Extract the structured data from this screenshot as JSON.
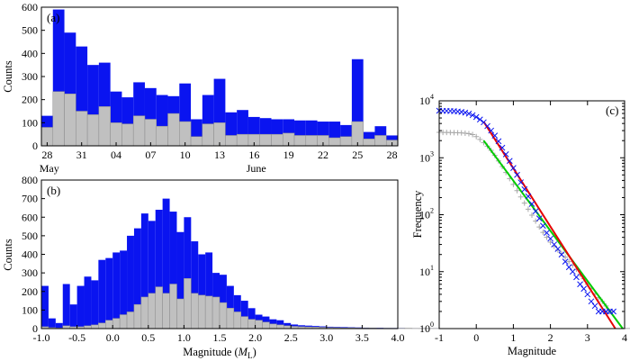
{
  "colors": {
    "total": "#0a14f0",
    "subset": "#c0c0c0",
    "edge": "#8c8c8c",
    "fit_total": "#e60000",
    "fit_subset": "#00cc00",
    "cum_total": "#0a14f0",
    "cum_subset": "#a8a8a8"
  },
  "chart_data": [
    {
      "type": "bar",
      "panel": "(a)",
      "ylabel": "Counts",
      "ylim": [
        0,
        600
      ],
      "yticks": [
        0,
        100,
        200,
        300,
        400,
        500,
        600
      ],
      "day_range": [
        28,
        59
      ],
      "xtick_labels": [
        "28",
        "31",
        "04",
        "07",
        "10",
        "13",
        "16",
        "19",
        "22",
        "25",
        "28"
      ],
      "month_labels": [
        "May",
        "June"
      ],
      "series": [
        {
          "name": "",
          "values": [
            130,
            590,
            490,
            430,
            350,
            360,
            235,
            210,
            275,
            250,
            220,
            215,
            270,
            115,
            220,
            290,
            145,
            155,
            125,
            120,
            115,
            115,
            110,
            110,
            105,
            105,
            90,
            375,
            60,
            85,
            45
          ]
        },
        {
          "name": "",
          "values": [
            80,
            235,
            225,
            150,
            135,
            170,
            100,
            95,
            130,
            115,
            85,
            140,
            105,
            40,
            95,
            100,
            45,
            50,
            50,
            50,
            50,
            55,
            45,
            45,
            45,
            35,
            40,
            105,
            30,
            45,
            25
          ]
        }
      ]
    },
    {
      "type": "bar",
      "panel": "(b)",
      "xlabel": "Magnitude (",
      "xlabel_sym": "M",
      "xlabel_sub": "L",
      "xlabel_end": ")",
      "ylabel": "Counts",
      "xlim": [
        -1.0,
        4.0
      ],
      "ylim": [
        0,
        800
      ],
      "xtick_labels": [
        "-1.0",
        "-0.5",
        "0.0",
        "0.5",
        "1.0",
        "1.5",
        "2.0",
        "2.5",
        "3.0",
        "3.5",
        "4.0"
      ],
      "yticks": [
        0,
        100,
        200,
        300,
        400,
        500,
        600,
        700,
        800
      ],
      "bin_width": 0.1,
      "bin_start": -1.0,
      "series": [
        {
          "name": "",
          "values": [
            230,
            55,
            30,
            240,
            130,
            230,
            280,
            260,
            370,
            380,
            410,
            420,
            500,
            540,
            620,
            580,
            640,
            700,
            630,
            520,
            600,
            470,
            400,
            410,
            300,
            290,
            230,
            180,
            150,
            110,
            75,
            65,
            50,
            45,
            30,
            22,
            18,
            16,
            14,
            12,
            10,
            9,
            8,
            7,
            6,
            5,
            4,
            4,
            3,
            3,
            3,
            2,
            2,
            2,
            2,
            2,
            1,
            1,
            1,
            1,
            1,
            1,
            1,
            1,
            1,
            1,
            1,
            1,
            1,
            1,
            1,
            1,
            1,
            1,
            1,
            1,
            1,
            1,
            1,
            1,
            1,
            1,
            1,
            1,
            1,
            1,
            1,
            1,
            1,
            1,
            1,
            1,
            1,
            1,
            1,
            1,
            1,
            1,
            1,
            1
          ]
        },
        {
          "name": "",
          "values": [
            10,
            5,
            3,
            15,
            10,
            10,
            15,
            20,
            30,
            45,
            55,
            75,
            90,
            130,
            170,
            190,
            225,
            190,
            240,
            160,
            270,
            190,
            180,
            175,
            170,
            140,
            110,
            90,
            65,
            50,
            45,
            35,
            25,
            20,
            15,
            12,
            10,
            9,
            8,
            7,
            6,
            5,
            4,
            4,
            3,
            3,
            3,
            2,
            2,
            2,
            2,
            2,
            1,
            1,
            1,
            1,
            1,
            1,
            1,
            1,
            1,
            1,
            1,
            1,
            1,
            1,
            1,
            1,
            1,
            1,
            1,
            1,
            1,
            1,
            1,
            1,
            1,
            1,
            1,
            1,
            1,
            1,
            1,
            1,
            1,
            1,
            1,
            1,
            1,
            1,
            1,
            1,
            1,
            1,
            1,
            1,
            1,
            1,
            1,
            1
          ]
        }
      ]
    },
    {
      "type": "scatter",
      "panel": "(c)",
      "xlabel": "Magnitude",
      "ylabel": "Frequency",
      "xlim": [
        -1,
        4
      ],
      "ylim": [
        1,
        10000
      ],
      "yscale": "log",
      "xtick_labels": [
        "-1",
        "0",
        "1",
        "2",
        "3",
        "4"
      ],
      "ytick_labels": [
        {
          "base": "10",
          "exp": "0"
        },
        {
          "base": "10",
          "exp": "1"
        },
        {
          "base": "10",
          "exp": "2"
        },
        {
          "base": "10",
          "exp": "3"
        },
        {
          "base": "10",
          "exp": "4"
        }
      ],
      "series": [
        {
          "name": "",
          "marker": "x",
          "points": [
            [
              -1.0,
              6700
            ],
            [
              -0.9,
              6650
            ],
            [
              -0.8,
              6650
            ],
            [
              -0.7,
              6620
            ],
            [
              -0.6,
              6580
            ],
            [
              -0.5,
              6500
            ],
            [
              -0.4,
              6380
            ],
            [
              -0.3,
              6200
            ],
            [
              -0.2,
              5950
            ],
            [
              -0.1,
              5600
            ],
            [
              0.0,
              5200
            ],
            [
              0.1,
              4700
            ],
            [
              0.2,
              4200
            ],
            [
              0.3,
              3600
            ],
            [
              0.4,
              3000
            ],
            [
              0.5,
              2450
            ],
            [
              0.6,
              1950
            ],
            [
              0.7,
              1500
            ],
            [
              0.8,
              1150
            ],
            [
              0.9,
              880
            ],
            [
              1.0,
              660
            ],
            [
              1.1,
              500
            ],
            [
              1.2,
              370
            ],
            [
              1.3,
              280
            ],
            [
              1.4,
              210
            ],
            [
              1.5,
              155
            ],
            [
              1.6,
              115
            ],
            [
              1.7,
              86
            ],
            [
              1.8,
              64
            ],
            [
              1.9,
              48
            ],
            [
              2.0,
              38
            ],
            [
              2.1,
              30
            ],
            [
              2.2,
              25
            ],
            [
              2.3,
              20
            ],
            [
              2.4,
              15
            ],
            [
              2.5,
              12
            ],
            [
              2.6,
              10
            ],
            [
              2.7,
              8
            ],
            [
              2.8,
              6
            ],
            [
              2.9,
              5
            ],
            [
              3.0,
              4
            ],
            [
              3.1,
              3
            ],
            [
              3.2,
              2.5
            ],
            [
              3.3,
              2
            ],
            [
              3.4,
              2
            ],
            [
              3.5,
              2
            ],
            [
              3.6,
              2
            ],
            [
              3.7,
              2
            ]
          ]
        },
        {
          "name": "",
          "marker": "+",
          "points": [
            [
              -1.0,
              2800
            ],
            [
              -0.9,
              2790
            ],
            [
              -0.8,
              2780
            ],
            [
              -0.7,
              2770
            ],
            [
              -0.6,
              2760
            ],
            [
              -0.5,
              2750
            ],
            [
              -0.4,
              2730
            ],
            [
              -0.3,
              2700
            ],
            [
              -0.2,
              2650
            ],
            [
              -0.1,
              2550
            ],
            [
              0.0,
              2350
            ],
            [
              0.1,
              2100
            ],
            [
              0.2,
              1850
            ],
            [
              0.3,
              1600
            ],
            [
              0.4,
              1350
            ],
            [
              0.5,
              1100
            ],
            [
              0.6,
              880
            ],
            [
              0.7,
              700
            ],
            [
              0.8,
              550
            ],
            [
              0.9,
              430
            ],
            [
              1.0,
              340
            ],
            [
              1.1,
              265
            ],
            [
              1.2,
              205
            ],
            [
              1.3,
              160
            ],
            [
              1.4,
              125
            ],
            [
              1.5,
              98
            ],
            [
              1.6,
              77
            ],
            [
              1.7,
              61
            ],
            [
              1.8,
              49
            ],
            [
              1.9,
              40
            ],
            [
              2.0,
              33
            ],
            [
              2.1,
              28
            ],
            [
              2.2,
              24
            ],
            [
              2.3,
              21
            ],
            [
              2.4,
              18
            ],
            [
              2.5,
              15
            ],
            [
              2.6,
              13
            ],
            [
              2.7,
              11
            ],
            [
              2.8,
              9
            ],
            [
              2.9,
              7.5
            ],
            [
              3.0,
              6
            ],
            [
              3.1,
              5
            ],
            [
              3.2,
              4
            ],
            [
              3.3,
              3.5
            ],
            [
              3.4,
              3
            ],
            [
              3.5,
              2.5
            ],
            [
              3.6,
              2
            ]
          ]
        },
        {
          "name": "",
          "type": "line",
          "points": [
            [
              0.2,
              4300
            ],
            [
              3.75,
              1
            ]
          ]
        },
        {
          "name": "",
          "type": "line",
          "points": [
            [
              0.2,
              2000
            ],
            [
              3.95,
              1
            ]
          ]
        }
      ]
    }
  ]
}
